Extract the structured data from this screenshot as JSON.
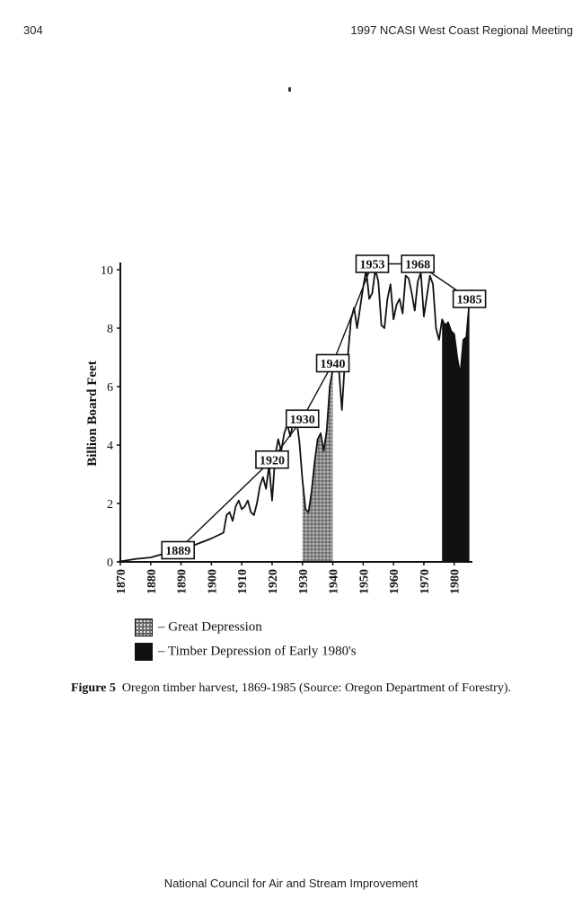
{
  "header": {
    "page_number": "304",
    "running_title": "1997 NCASI West Coast Regional Meeting"
  },
  "chart_data": {
    "type": "line",
    "title": "",
    "ylabel": "Billion Board Feet",
    "xlabel": "",
    "xlim": [
      1870,
      1986
    ],
    "ylim": [
      0,
      10
    ],
    "x_ticks": [
      1870,
      1880,
      1890,
      1900,
      1910,
      1920,
      1930,
      1940,
      1950,
      1960,
      1970,
      1980
    ],
    "y_ticks": [
      0,
      2,
      4,
      6,
      8,
      10
    ],
    "series": [
      {
        "x": [
          1869,
          1875,
          1880,
          1885,
          1889,
          1895,
          1900,
          1904,
          1905,
          1906,
          1907,
          1908,
          1909,
          1910,
          1911,
          1912,
          1913,
          1914,
          1915,
          1916,
          1917,
          1918,
          1919,
          1920,
          1921,
          1922,
          1923,
          1924,
          1925,
          1926,
          1927,
          1928,
          1929,
          1930,
          1931,
          1932,
          1933,
          1934,
          1935,
          1936,
          1937,
          1938,
          1939,
          1940,
          1941,
          1942,
          1943,
          1944,
          1945,
          1946,
          1947,
          1948,
          1949,
          1950,
          1951,
          1952,
          1953,
          1954,
          1955,
          1956,
          1957,
          1958,
          1959,
          1960,
          1961,
          1962,
          1963,
          1964,
          1965,
          1966,
          1967,
          1968,
          1969,
          1970,
          1971,
          1972,
          1973,
          1974,
          1975,
          1976,
          1977,
          1978,
          1979,
          1980,
          1981,
          1982,
          1983,
          1984,
          1985
        ],
        "values": [
          0,
          0.1,
          0.15,
          0.3,
          0.4,
          0.6,
          0.8,
          1.0,
          1.6,
          1.7,
          1.4,
          1.9,
          2.1,
          1.8,
          1.9,
          2.1,
          1.7,
          1.6,
          2.0,
          2.6,
          2.9,
          2.5,
          3.3,
          2.1,
          3.6,
          4.2,
          3.8,
          4.4,
          4.7,
          4.3,
          4.8,
          4.9,
          4.1,
          2.8,
          1.8,
          1.7,
          2.4,
          3.4,
          4.2,
          4.4,
          3.8,
          4.5,
          6.0,
          6.6,
          6.7,
          6.6,
          5.2,
          6.9,
          7.1,
          8.3,
          8.7,
          8.0,
          8.7,
          9.4,
          10.0,
          9.0,
          9.2,
          10.0,
          9.6,
          8.1,
          8.0,
          9.0,
          9.5,
          8.3,
          8.8,
          9.0,
          8.5,
          9.8,
          9.7,
          9.2,
          8.6,
          9.6,
          9.9,
          8.4,
          9.1,
          9.8,
          9.5,
          8.0,
          7.6,
          8.3,
          8.1,
          8.2,
          7.9,
          7.8,
          7.0,
          6.4,
          7.6,
          7.7,
          8.9
        ]
      }
    ],
    "milestones": [
      {
        "label": "1889",
        "year": 1889,
        "value": 0.4
      },
      {
        "label": "1920",
        "year": 1920,
        "value": 3.5
      },
      {
        "label": "1930",
        "year": 1930,
        "value": 4.9
      },
      {
        "label": "1940",
        "year": 1940,
        "value": 6.8
      },
      {
        "label": "1953",
        "year": 1953,
        "value": 10.2
      },
      {
        "label": "1968",
        "year": 1968,
        "value": 10.2
      },
      {
        "label": "1985",
        "year": 1985,
        "value": 9.0
      }
    ],
    "shaded_periods": [
      {
        "name": "Great Depression",
        "start": 1930,
        "end": 1940,
        "fill": "#777777"
      },
      {
        "name": "Timber Depression of Early 1980's",
        "start": 1976,
        "end": 1985,
        "fill": "#111111"
      }
    ]
  },
  "legend": {
    "great_depression": "– Great Depression",
    "timber_depression": "– Timber Depression of Early 1980's"
  },
  "caption": {
    "label": "Figure 5",
    "text": "Oregon timber harvest, 1869-1985 (Source:  Oregon Department of Forestry)."
  },
  "footer": "National Council for Air and Stream Improvement"
}
